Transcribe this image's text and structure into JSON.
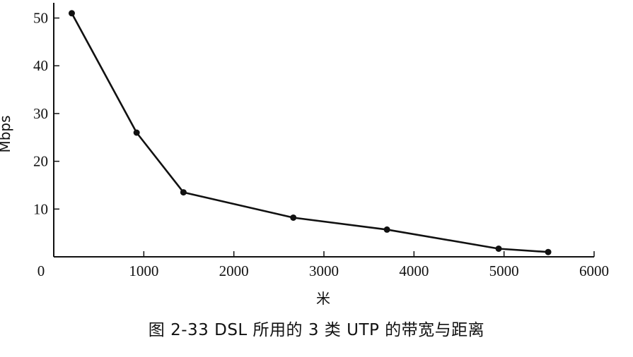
{
  "caption": "图 2-33 DSL 所用的 3 类 UTP 的带宽与距离",
  "chart_data": {
    "type": "line",
    "xlabel": "米",
    "ylabel": "Mbps",
    "xlim": [
      0,
      6000
    ],
    "ylim": [
      0,
      52
    ],
    "xticks": [
      0,
      1000,
      2000,
      3000,
      4000,
      5000,
      6000
    ],
    "yticks": [
      10,
      20,
      30,
      40,
      50
    ],
    "grid": false,
    "series": [
      {
        "x": [
          200,
          920,
          1440,
          2660,
          3700,
          4940,
          5490
        ],
        "y": [
          51,
          26,
          13.5,
          8.2,
          5.7,
          1.7,
          1.0
        ]
      }
    ]
  }
}
